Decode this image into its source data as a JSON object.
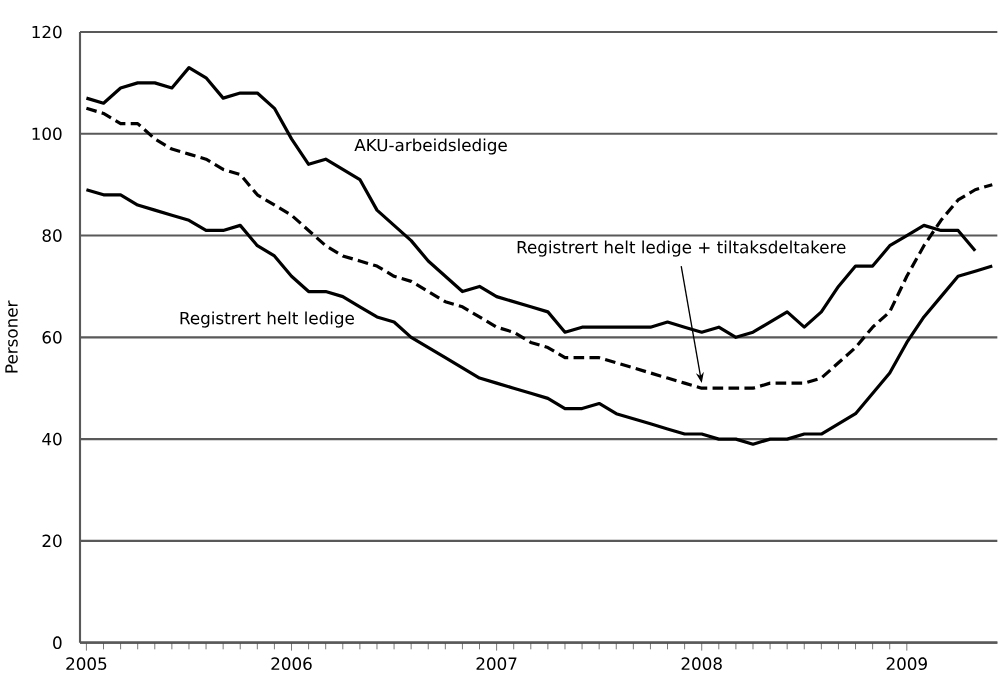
{
  "chart_data": {
    "type": "line",
    "ylabel": "Personer",
    "x": [
      "2005-01",
      "2005-02",
      "2005-03",
      "2005-04",
      "2005-05",
      "2005-06",
      "2005-07",
      "2005-08",
      "2005-09",
      "2005-10",
      "2005-11",
      "2005-12",
      "2006-01",
      "2006-02",
      "2006-03",
      "2006-04",
      "2006-05",
      "2006-06",
      "2006-07",
      "2006-08",
      "2006-09",
      "2006-10",
      "2006-11",
      "2006-12",
      "2007-01",
      "2007-02",
      "2007-03",
      "2007-04",
      "2007-05",
      "2007-06",
      "2007-07",
      "2007-08",
      "2007-09",
      "2007-10",
      "2007-11",
      "2007-12",
      "2008-01",
      "2008-02",
      "2008-03",
      "2008-04",
      "2008-05",
      "2008-06",
      "2008-07",
      "2008-08",
      "2008-09",
      "2008-10",
      "2008-11",
      "2008-12",
      "2009-01",
      "2009-02",
      "2009-03",
      "2009-04",
      "2009-05",
      "2009-06"
    ],
    "series": [
      {
        "name": "AKU-arbeidsledige",
        "color": "#000000",
        "line_style": "solid",
        "values": [
          107,
          106,
          109,
          110,
          110,
          109,
          113,
          111,
          107,
          108,
          108,
          105,
          99,
          94,
          95,
          93,
          91,
          85,
          82,
          79,
          75,
          72,
          69,
          70,
          68,
          67,
          66,
          65,
          61,
          62,
          62,
          62,
          62,
          62,
          63,
          62,
          61,
          62,
          60,
          61,
          63,
          65,
          62,
          65,
          70,
          74,
          74,
          78,
          80,
          82,
          81,
          81,
          77,
          null
        ]
      },
      {
        "color": "#000000",
        "line_style": "dashed",
        "values": [
          105,
          104,
          102,
          102,
          99,
          97,
          96,
          95,
          93,
          92,
          88,
          86,
          84,
          81,
          78,
          76,
          75,
          74,
          72,
          71,
          69,
          67,
          66,
          64,
          62,
          61,
          59,
          58,
          56,
          56,
          56,
          55,
          54,
          53,
          52,
          51,
          50,
          50,
          50,
          50,
          51,
          51,
          51,
          52,
          55,
          58,
          62,
          65,
          72,
          78,
          83,
          87,
          89,
          90
        ]
      },
      {
        "name": "Registrert helt  ledige",
        "color": "#000000",
        "line_style": "solid",
        "values": [
          89,
          88,
          88,
          86,
          85,
          84,
          83,
          81,
          81,
          82,
          78,
          76,
          72,
          69,
          69,
          68,
          66,
          64,
          63,
          60,
          58,
          56,
          54,
          52,
          51,
          50,
          49,
          48,
          46,
          46,
          47,
          45,
          44,
          43,
          42,
          41,
          41,
          40,
          40,
          39,
          40,
          40,
          41,
          41,
          43,
          45,
          49,
          53,
          59,
          64,
          68,
          72,
          73,
          74
        ]
      }
    ],
    "annotations": [
      {
        "text": "Registrert helt ledige + tiltaksdeltakere",
        "x": "2008-01",
        "y": 50
      }
    ],
    "xlim": [
      "2004-12-20",
      "2009-06-10"
    ],
    "xticks": [
      "2005",
      "2006",
      "2007",
      "2008",
      "2009"
    ],
    "ylim": [
      0,
      120
    ],
    "yticks": [
      0,
      20,
      40,
      60,
      80,
      100,
      120
    ],
    "grid": "y",
    "legend": false
  }
}
